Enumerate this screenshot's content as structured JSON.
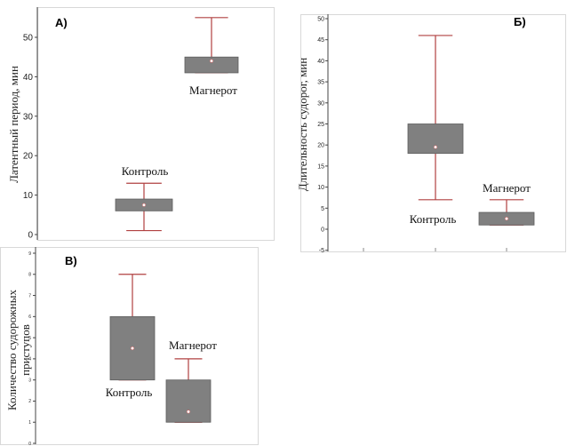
{
  "chart_data": [
    {
      "type": "box",
      "panel_label": "A)",
      "ylabel": "Латентный период, мин",
      "ylim": [
        -1,
        56
      ],
      "yticks": [
        0,
        10,
        20,
        30,
        40,
        50
      ],
      "grid": false,
      "series": [
        {
          "name": "Контроль",
          "whisker_low": 1,
          "q1": 6,
          "median": 7.5,
          "q3": 9,
          "whisker_high": 13
        },
        {
          "name": "Магнерот",
          "whisker_low": 41,
          "q1": 41,
          "median": 44,
          "q3": 45,
          "whisker_high": 55
        }
      ]
    },
    {
      "type": "box",
      "panel_label": "Б)",
      "ylabel": "Длительность судорог, мин",
      "ylim": [
        -5,
        50
      ],
      "yticks": [
        -5,
        0,
        5,
        10,
        15,
        20,
        25,
        30,
        35,
        40,
        45,
        50
      ],
      "grid": false,
      "series": [
        {
          "name": "Контроль",
          "whisker_low": 7,
          "q1": 18,
          "median": 19.5,
          "q3": 25,
          "whisker_high": 46
        },
        {
          "name": "Магнерот",
          "whisker_low": 1,
          "q1": 1,
          "median": 2.5,
          "q3": 4,
          "whisker_high": 7
        }
      ]
    },
    {
      "type": "box",
      "panel_label": "В)",
      "ylabel": "Количество судорожных приступов",
      "ylim": [
        0,
        9
      ],
      "yticks": [
        0,
        1,
        2,
        3,
        4,
        5,
        6,
        7,
        8,
        9
      ],
      "grid": false,
      "series": [
        {
          "name": "Контроль",
          "whisker_low": 3,
          "q1": 3,
          "median": 4.5,
          "q3": 6,
          "whisker_high": 8
        },
        {
          "name": "Магнерот",
          "whisker_low": 1,
          "q1": 1,
          "median": 1.5,
          "q3": 3,
          "whisker_high": 4
        }
      ]
    }
  ],
  "colors": {
    "box_fill": "#808080",
    "whisker": "#b04040",
    "median_point": "#ffffff",
    "axis": "#444444"
  }
}
